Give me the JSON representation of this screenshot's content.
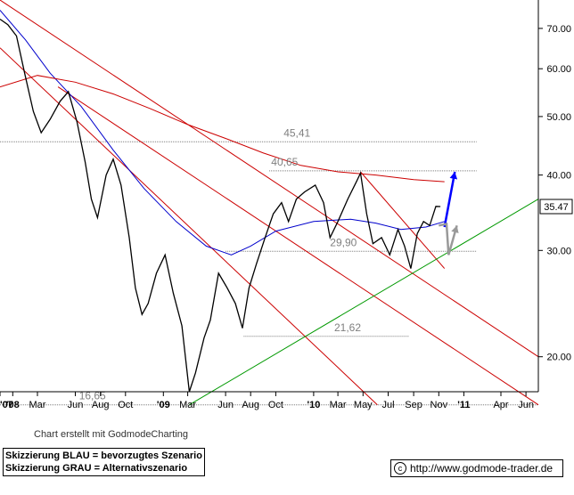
{
  "chart_data": {
    "type": "line",
    "yscale": "log",
    "ylim": [
      17.5,
      78
    ],
    "y_ticks": [
      "20.00",
      "30.00",
      "40.00",
      "50.00",
      "60.00",
      "70.00"
    ],
    "y_tick_values": [
      20,
      30,
      40,
      50,
      60,
      70
    ],
    "x_ticks": [
      "'07",
      "'08",
      "Mar",
      "Jun",
      "Aug",
      "Oct",
      "'09",
      "Mar",
      "Jun",
      "Aug",
      "Oct",
      "'10",
      "Mar",
      "May",
      "Jul",
      "Sep",
      "Nov",
      "'11",
      "Apr",
      "Jun"
    ],
    "x_tick_dates": [
      "2007-12-01",
      "2008-01-01",
      "2008-03-01",
      "2008-06-01",
      "2008-08-01",
      "2008-10-01",
      "2009-01-01",
      "2009-03-01",
      "2009-06-01",
      "2009-08-01",
      "2009-10-01",
      "2010-01-01",
      "2010-03-01",
      "2010-05-01",
      "2010-07-01",
      "2010-09-01",
      "2010-11-01",
      "2011-01-01",
      "2011-04-01",
      "2011-06-01"
    ],
    "last_price_label": "35.47",
    "last_price": 35.47,
    "price_series": [
      [
        "2007-12-01",
        72.5
      ],
      [
        "2007-12-20",
        71.0
      ],
      [
        "2008-01-10",
        68.0
      ],
      [
        "2008-01-31",
        58.5
      ],
      [
        "2008-02-20",
        51.0
      ],
      [
        "2008-03-10",
        47.0
      ],
      [
        "2008-04-01",
        49.5
      ],
      [
        "2008-04-25",
        53.0
      ],
      [
        "2008-05-15",
        55.0
      ],
      [
        "2008-06-05",
        49.0
      ],
      [
        "2008-06-25",
        42.0
      ],
      [
        "2008-07-10",
        36.5
      ],
      [
        "2008-07-25",
        34.0
      ],
      [
        "2008-08-15",
        40.0
      ],
      [
        "2008-09-01",
        42.5
      ],
      [
        "2008-09-20",
        38.5
      ],
      [
        "2008-10-10",
        31.5
      ],
      [
        "2008-10-25",
        26.0
      ],
      [
        "2008-11-10",
        23.5
      ],
      [
        "2008-11-25",
        24.5
      ],
      [
        "2008-12-15",
        27.5
      ],
      [
        "2009-01-05",
        29.5
      ],
      [
        "2009-01-25",
        25.5
      ],
      [
        "2009-02-15",
        22.5
      ],
      [
        "2009-03-05",
        17.5
      ],
      [
        "2009-03-20",
        18.8
      ],
      [
        "2009-04-10",
        21.5
      ],
      [
        "2009-04-25",
        23.0
      ],
      [
        "2009-05-15",
        27.5
      ],
      [
        "2009-06-05",
        26.0
      ],
      [
        "2009-06-25",
        24.5
      ],
      [
        "2009-07-12",
        22.3
      ],
      [
        "2009-07-28",
        26.0
      ],
      [
        "2009-08-15",
        28.5
      ],
      [
        "2009-09-05",
        31.5
      ],
      [
        "2009-09-25",
        34.5
      ],
      [
        "2009-10-15",
        36.0
      ],
      [
        "2009-11-01",
        33.5
      ],
      [
        "2009-11-20",
        36.5
      ],
      [
        "2009-12-10",
        37.5
      ],
      [
        "2010-01-05",
        38.5
      ],
      [
        "2010-01-25",
        36.0
      ],
      [
        "2010-02-10",
        31.5
      ],
      [
        "2010-03-01",
        33.5
      ],
      [
        "2010-03-25",
        36.5
      ],
      [
        "2010-04-15",
        39.0
      ],
      [
        "2010-04-25",
        40.3
      ],
      [
        "2010-05-10",
        34.5
      ],
      [
        "2010-05-25",
        30.8
      ],
      [
        "2010-06-15",
        31.5
      ],
      [
        "2010-07-05",
        29.5
      ],
      [
        "2010-07-25",
        32.5
      ],
      [
        "2010-08-10",
        30.5
      ],
      [
        "2010-08-25",
        28.0
      ],
      [
        "2010-09-10",
        32.0
      ],
      [
        "2010-09-25",
        33.5
      ],
      [
        "2010-10-10",
        33.0
      ],
      [
        "2010-10-25",
        35.5
      ],
      [
        "2010-11-05",
        35.47
      ]
    ],
    "moving_averages": [
      {
        "color": "#0000cc",
        "points": [
          [
            "2007-12-01",
            75.0
          ],
          [
            "2008-02-01",
            67.0
          ],
          [
            "2008-04-01",
            59.0
          ],
          [
            "2008-06-15",
            52.0
          ],
          [
            "2008-09-01",
            44.0
          ],
          [
            "2008-11-15",
            38.0
          ],
          [
            "2009-02-01",
            33.5
          ],
          [
            "2009-04-15",
            30.5
          ],
          [
            "2009-06-15",
            29.5
          ],
          [
            "2009-08-01",
            30.5
          ],
          [
            "2009-10-01",
            32.3
          ],
          [
            "2010-01-01",
            33.5
          ],
          [
            "2010-04-01",
            33.8
          ],
          [
            "2010-06-01",
            33.3
          ],
          [
            "2010-08-01",
            32.5
          ],
          [
            "2010-10-01",
            32.8
          ],
          [
            "2010-11-15",
            33.5
          ]
        ]
      },
      {
        "color": "#cc0000",
        "points": [
          [
            "2007-12-01",
            56.0
          ],
          [
            "2008-03-01",
            58.5
          ],
          [
            "2008-06-01",
            57.0
          ],
          [
            "2008-09-01",
            54.5
          ],
          [
            "2008-12-01",
            51.5
          ],
          [
            "2009-03-01",
            48.5
          ],
          [
            "2009-06-01",
            46.0
          ],
          [
            "2009-09-01",
            43.5
          ],
          [
            "2009-12-01",
            41.5
          ],
          [
            "2010-03-01",
            40.5
          ],
          [
            "2010-06-01",
            40.0
          ],
          [
            "2010-09-01",
            39.3
          ],
          [
            "2010-11-15",
            39.0
          ]
        ]
      }
    ],
    "horizontal_levels": [
      {
        "label": "45,41",
        "value": 45.41,
        "from": "2007-12-01",
        "to": "2011-02-01",
        "label_date": "2009-10-20"
      },
      {
        "label": "40,65",
        "value": 40.65,
        "from": "2009-09-15",
        "to": "2011-02-01",
        "label_date": "2009-09-20"
      },
      {
        "label": "29,90",
        "value": 29.9,
        "from": "2009-06-01",
        "to": "2011-02-01",
        "label_date": "2010-02-10"
      },
      {
        "label": "21,62",
        "value": 21.62,
        "from": "2009-07-15",
        "to": "2010-08-20",
        "label_date": "2010-02-20"
      },
      {
        "label": "16,65",
        "value": 16.65,
        "from": "2007-12-01",
        "to": "2011-07-01",
        "label_date": "2008-06-10"
      }
    ],
    "trend_lines": [
      {
        "color": "#cc0000",
        "from": [
          "2007-12-01",
          78.0
        ],
        "to": [
          "2011-07-01",
          20.0
        ]
      },
      {
        "color": "#cc0000",
        "from": [
          "2008-04-20",
          56.0
        ],
        "to": [
          "2011-07-01",
          16.65
        ]
      },
      {
        "color": "#cc0000",
        "from": [
          "2007-12-01",
          65.0
        ],
        "to": [
          "2010-06-05",
          16.65
        ]
      },
      {
        "color": "#cc0000",
        "from": [
          "2010-04-25",
          40.5
        ],
        "to": [
          "2010-11-15",
          28.0
        ]
      },
      {
        "color": "#009900",
        "from": [
          "2009-03-05",
          16.65
        ],
        "to": [
          "2011-07-01",
          36.5
        ]
      }
    ],
    "scenario_arrows": [
      {
        "color": "#0000ff",
        "points": [
          [
            "2010-11-15",
            32.8
          ],
          [
            "2010-12-10",
            40.5
          ]
        ]
      },
      {
        "color": "#999999",
        "points": [
          [
            "2010-11-01",
            33.0
          ],
          [
            "2010-11-20",
            33.2
          ],
          [
            "2010-11-25",
            29.5
          ],
          [
            "2010-12-15",
            33.0
          ]
        ]
      }
    ]
  },
  "footer": {
    "credit": "Chart erstellt mit GodmodeCharting",
    "legend_blue": "Skizzierung BLAU = bevorzugtes Szenario",
    "legend_grey": "Skizzierung GRAU = Alternativszenario",
    "copyright_symbol": "c",
    "url": "http://www.godmode-trader.de"
  },
  "colors": {
    "price": "#000000",
    "level_line": "#7f7f7f",
    "axis": "#000000",
    "price_box": "#ffffff"
  }
}
